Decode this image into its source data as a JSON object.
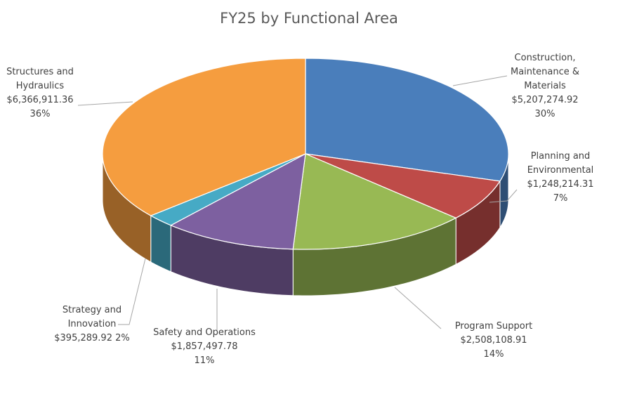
{
  "chart_data": {
    "type": "pie",
    "title": "FY25 by Functional Area",
    "slices": [
      {
        "name": "Construction, Maintenance & Materials",
        "label_lines": [
          "Construction,",
          "Maintenance &",
          "Materials"
        ],
        "value_text": "$5,207,274.92",
        "pct_text": "30%",
        "value": 5207274.92,
        "color": "#4a7ebb"
      },
      {
        "name": "Planning and Environmental",
        "label_lines": [
          "Planning and",
          "Environmental"
        ],
        "value_text": "$1,248,214.31",
        "pct_text": "7%",
        "value": 1248214.31,
        "color": "#be4b48"
      },
      {
        "name": "Program Support",
        "label_lines": [
          "Program Support"
        ],
        "value_text": "$2,508,108.91",
        "pct_text": "14%",
        "value": 2508108.91,
        "color": "#98b954"
      },
      {
        "name": "Safety and Operations",
        "label_lines": [
          "Safety and Operations"
        ],
        "value_text": "$1,857,497.78",
        "pct_text": "11%",
        "value": 1857497.78,
        "color": "#7d60a0"
      },
      {
        "name": "Strategy and Innovation",
        "label_lines": [
          "Strategy and",
          "Innovation"
        ],
        "value_text": "$395,289.92",
        "pct_text": "2%",
        "value": 395289.92,
        "color": "#46aac5"
      },
      {
        "name": "Structures and Hydraulics",
        "label_lines": [
          "Structures and",
          "Hydraulics"
        ],
        "value_text": "$6,366,911.36",
        "pct_text": "36%",
        "value": 6366911.36,
        "color": "#f59d3f"
      }
    ]
  }
}
